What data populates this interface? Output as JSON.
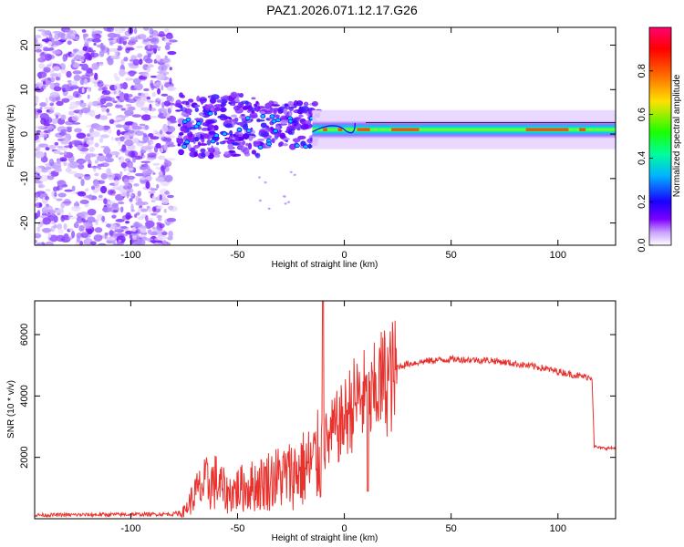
{
  "title": "PAZ1.2026.071.12.17.G26",
  "chart_data": [
    {
      "type": "heatmap",
      "title": "PAZ1.2026.071.12.17.G26",
      "xlabel": "Height of straight line (km)",
      "ylabel": "Frequency (Hz)",
      "xlim": [
        -145,
        127
      ],
      "ylim": [
        -25,
        24
      ],
      "xticks": [
        -100,
        -50,
        0,
        50,
        100
      ],
      "yticks": [
        -20,
        -10,
        0,
        10,
        20
      ],
      "xtick_labels": [
        "-100",
        "-50",
        "0",
        "50",
        "100"
      ],
      "ytick_labels": [
        "-20",
        "-10",
        "0",
        "10",
        "20"
      ],
      "colorbar": {
        "label": "Normalized spectral amplitude",
        "range": [
          0,
          1
        ],
        "ticks": [
          0.0,
          0.2,
          0.4,
          0.6,
          0.8
        ],
        "tick_labels": [
          "0.0",
          "0.2",
          "0.4",
          "0.6",
          "0.8"
        ],
        "colors": [
          "#ffffff",
          "#c9a0ff",
          "#7b00ff",
          "#1a00ff",
          "#00b4ff",
          "#00ff9a",
          "#1aff00",
          "#ffe000",
          "#ff6a00",
          "#ff0000",
          "#ff0070"
        ]
      },
      "regions": [
        {
          "name": "noise",
          "x_range": [
            -145,
            -80
          ],
          "f_range": [
            -25,
            24
          ],
          "amplitude": 0.1
        },
        {
          "name": "transition",
          "x_range": [
            -78,
            -20
          ],
          "f_range": [
            -6,
            10
          ],
          "amplitude": 0.2
        },
        {
          "name": "signal",
          "x_range": [
            -15,
            127
          ],
          "center_hz": 1,
          "half_width_hz": 2,
          "amplitude": 0.9
        }
      ]
    },
    {
      "type": "line",
      "xlabel": "Height of straight line (km)",
      "ylabel": "SNR (10 * v/v)",
      "xlim": [
        -145,
        127
      ],
      "ylim": [
        0,
        7100
      ],
      "xticks": [
        -100,
        -50,
        0,
        50,
        100
      ],
      "yticks": [
        2000,
        4000,
        6000
      ],
      "xtick_labels": [
        "-100",
        "-50",
        "0",
        "50",
        "100"
      ],
      "ytick_labels": [
        "2000",
        "4000",
        "6000"
      ],
      "series": [
        {
          "name": "SNR",
          "color": "#e8322e",
          "x": [
            -145,
            -120,
            -100,
            -80,
            -75,
            -72,
            -70,
            -65,
            -60,
            -55,
            -50,
            -45,
            -40,
            -35,
            -30,
            -25,
            -20,
            -15,
            -12,
            -10,
            -8,
            -5,
            -2,
            0,
            2,
            5,
            8,
            10,
            12,
            15,
            20,
            25,
            30,
            40,
            50,
            60,
            70,
            80,
            90,
            100,
            110,
            116,
            117,
            120,
            127
          ],
          "y": [
            120,
            130,
            140,
            150,
            300,
            700,
            1000,
            1400,
            1500,
            1000,
            1200,
            1300,
            1400,
            1600,
            1700,
            1800,
            2000,
            2200,
            2500,
            2700,
            2600,
            3000,
            3200,
            3400,
            3700,
            4000,
            4200,
            4100,
            3800,
            4500,
            4800,
            4950,
            5050,
            5150,
            5200,
            5180,
            5150,
            5050,
            4950,
            4800,
            4650,
            4600,
            2350,
            2300,
            2300
          ]
        }
      ]
    }
  ]
}
